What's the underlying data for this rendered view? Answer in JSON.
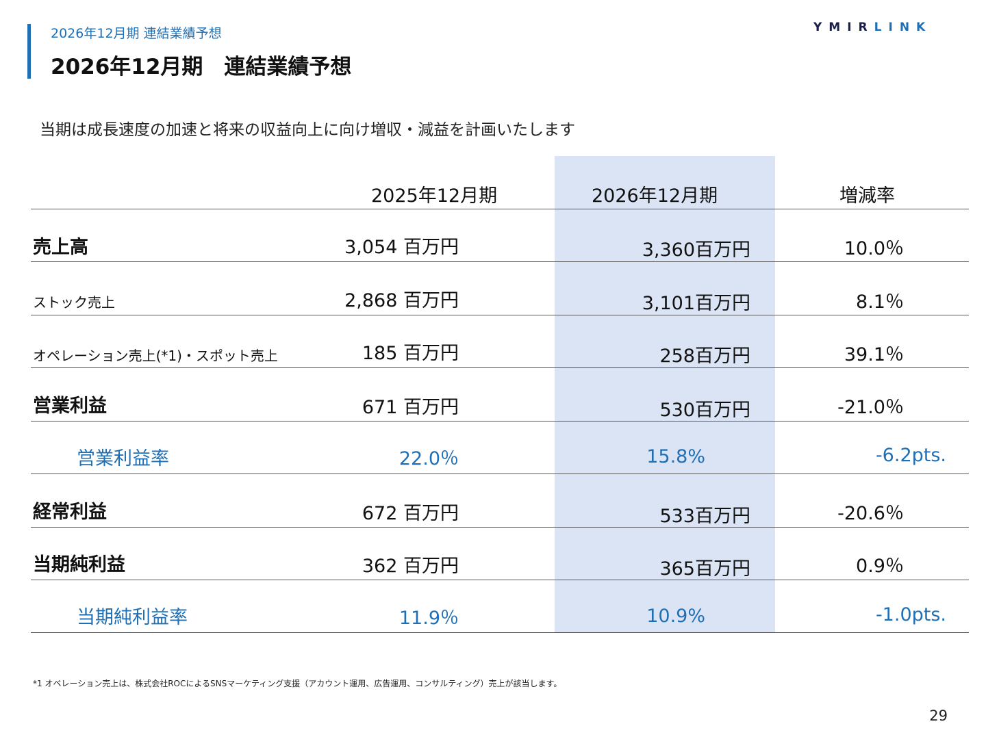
{
  "header": {
    "subtitle": "2026年12月期 連結業績予想",
    "title": "2026年12月期　連結業績予想",
    "logo_part1": "YMIR",
    "logo_part2": "LINK"
  },
  "lead_text": "当期は成長速度の加速と将来の収益向上に向け増収・減益を計画いたします",
  "table": {
    "columns": [
      "2025年12月期",
      "2026年12月期",
      "増減率"
    ],
    "rows": [
      {
        "label": "売上高",
        "v2025": "3,054 百万円",
        "v2026": "3,360百万円",
        "rate": "10.0％"
      },
      {
        "label": "ストック売上",
        "v2025": "2,868 百万円",
        "v2026": "3,101百万円",
        "rate": "8.1％"
      },
      {
        "label": "オペレーション売上(*1)・スポット売上",
        "v2025": "185 百万円",
        "v2026": "258百万円",
        "rate": "39.1％"
      },
      {
        "label": "営業利益",
        "v2025": "671 百万円",
        "v2026": "530百万円",
        "rate": "-21.0％"
      },
      {
        "label": "営業利益率",
        "v2025": "22.0％",
        "v2026": "15.8%",
        "rate": "-6.2pts."
      },
      {
        "label": "経常利益",
        "v2025": "672 百万円",
        "v2026": "533百万円",
        "rate": "-20.6％"
      },
      {
        "label": "当期純利益",
        "v2025": "362 百万円",
        "v2026": "365百万円",
        "rate": "0.9％"
      },
      {
        "label": "当期純利益率",
        "v2025": "11.9％",
        "v2026": "10.9%",
        "rate": "-1.0pts."
      }
    ]
  },
  "footnote": "*1 オペレーション売上は、株式会社ROCによるSNSマーケティング支援（アカウント運用、広告運用、コンサルティング）売上が該当します。",
  "page_number": "29",
  "colors": {
    "accent": "#1f6fb5",
    "highlight": "#dbe4f4",
    "logo_dark": "#1a1f4a"
  }
}
